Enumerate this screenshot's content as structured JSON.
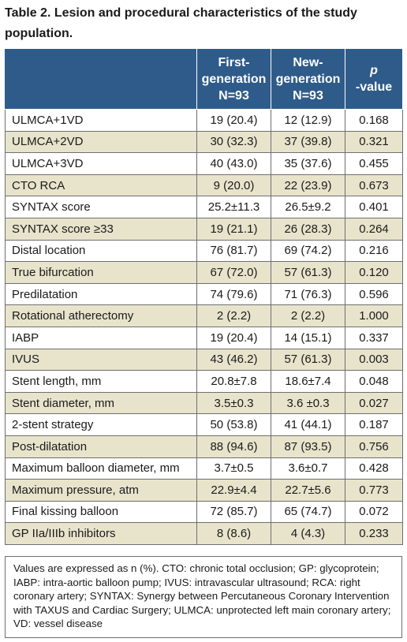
{
  "title": "Table 2. Lesion and procedural characteristics of the study population.",
  "header": {
    "col0": "",
    "col1": [
      "First-",
      "generation",
      "N=93"
    ],
    "col2": [
      "New-",
      "generation",
      "N=93"
    ],
    "col3": "p-value"
  },
  "rows": [
    {
      "label": "ULMCA+1VD",
      "first": "19 (20.4)",
      "new": "12 (12.9)",
      "p": "0.168"
    },
    {
      "label": "ULMCA+2VD",
      "first": "30 (32.3)",
      "new": "37 (39.8)",
      "p": "0.321"
    },
    {
      "label": "ULMCA+3VD",
      "first": "40 (43.0)",
      "new": "35 (37.6)",
      "p": "0.455"
    },
    {
      "label": "CTO RCA",
      "first": "9 (20.0)",
      "new": "22 (23.9)",
      "p": "0.673"
    },
    {
      "label": "SYNTAX score",
      "first": "25.2±11.3",
      "new": "26.5±9.2",
      "p": "0.401"
    },
    {
      "label": "SYNTAX score ≥33",
      "first": "19 (21.1)",
      "new": "26 (28.3)",
      "p": "0.264"
    },
    {
      "label": "Distal location",
      "first": "76 (81.7)",
      "new": "69 (74.2)",
      "p": "0.216"
    },
    {
      "label": "True bifurcation",
      "first": "67 (72.0)",
      "new": "57 (61.3)",
      "p": "0.120"
    },
    {
      "label": "Predilatation",
      "first": "74 (79.6)",
      "new": "71 (76.3)",
      "p": "0.596"
    },
    {
      "label": "Rotational atherectomy",
      "first": "2 (2.2)",
      "new": "2 (2.2)",
      "p": "1.000"
    },
    {
      "label": "IABP",
      "first": "19 (20.4)",
      "new": "14 (15.1)",
      "p": "0.337"
    },
    {
      "label": "IVUS",
      "first": "43 (46.2)",
      "new": "57 (61.3)",
      "p": "0.003"
    },
    {
      "label": "Stent length, mm",
      "first": "20.8±7.8",
      "new": "18.6±7.4",
      "p": "0.048"
    },
    {
      "label": "Stent diameter, mm",
      "first": "3.5±0.3",
      "new": "3.6 ±0.3",
      "p": "0.027"
    },
    {
      "label": "2-stent strategy",
      "first": "50 (53.8)",
      "new": "41 (44.1)",
      "p": "0.187"
    },
    {
      "label": "Post-dilatation",
      "first": "88 (94.6)",
      "new": "87 (93.5)",
      "p": "0.756"
    },
    {
      "label": "Maximum balloon diameter, mm",
      "first": "3.7±0.5",
      "new": "3.6±0.7",
      "p": "0.428"
    },
    {
      "label": "Maximum pressure, atm",
      "first": "22.9±4.4",
      "new": "22.7±5.6",
      "p": "0.773"
    },
    {
      "label": "Final kissing balloon",
      "first": "72 (85.7)",
      "new": "65 (74.7)",
      "p": "0.072"
    },
    {
      "label": "GP IIa/IIIb inhibitors",
      "first": "8 (8.6)",
      "new": "4 (4.3)",
      "p": "0.233"
    }
  ],
  "footnote": "Values are expressed as n (%). CTO: chronic total occlusion; GP: glycoprotein; IABP: intra-aortic balloon pump; IVUS: intravascular ultrasound; RCA: right coronary artery; SYNTAX: Synergy between Percutaneous Coronary Intervention with TAXUS and Cardiac Surgery; ULMCA: unprotected left main coronary artery; VD: vessel disease",
  "colors": {
    "header_bg": "#2f5b8a",
    "shade_bg": "#e8e4cc",
    "border": "#6e6e6e"
  }
}
